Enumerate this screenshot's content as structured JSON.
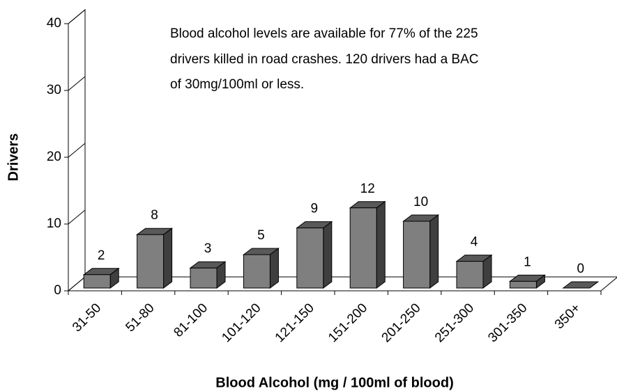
{
  "chart_data": {
    "type": "bar3d",
    "annotation": [
      "Blood alcohol levels are available for 77% of the 225",
      "drivers killed in road crashes. 120 drivers had a BAC",
      "of 30mg/100ml or less."
    ],
    "x_label": "Blood Alcohol (mg / 100ml of blood)",
    "y_label": "Drivers",
    "categories": [
      "31-50",
      "51-80",
      "81-100",
      "101-120",
      "121-150",
      "151-200",
      "201-250",
      "251-300",
      "301-350",
      "350+"
    ],
    "values": [
      2,
      8,
      3,
      5,
      9,
      12,
      10,
      4,
      1,
      0
    ],
    "color": "#7f7f7f",
    "ylim": [
      0,
      40
    ],
    "yticks": [
      0,
      10,
      20,
      30,
      40
    ]
  }
}
